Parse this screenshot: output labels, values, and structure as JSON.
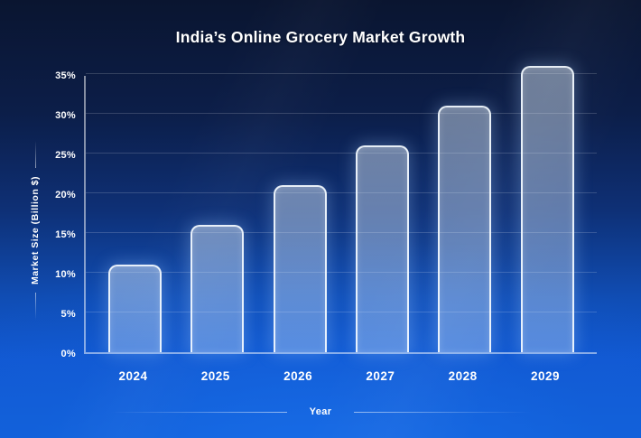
{
  "chart_data": {
    "type": "bar",
    "title": "India’s Online Grocery Market Growth",
    "xlabel": "Year",
    "ylabel": "Market Size (Billion $)",
    "categories": [
      "2024",
      "2025",
      "2026",
      "2027",
      "2028",
      "2029"
    ],
    "values": [
      11,
      16,
      21,
      26,
      31,
      36
    ],
    "ytick_labels": [
      "0%",
      "5%",
      "10%",
      "15%",
      "20%",
      "25%",
      "30%",
      "35%"
    ],
    "ytick_values": [
      0,
      5,
      10,
      15,
      20,
      25,
      30,
      35
    ],
    "ylim": [
      0,
      35
    ],
    "grid": true,
    "legend": false
  },
  "colors": {
    "background_top": "#0a1530",
    "background_bottom": "#1162dc",
    "bar_fill": "rgba(226,241,255,0.40)",
    "bar_border": "rgba(244,250,255,0.92)",
    "gridline": "rgba(255,255,255,0.17)",
    "axis_line": "rgba(255,255,255,0.50)",
    "text": "#ffffff"
  }
}
